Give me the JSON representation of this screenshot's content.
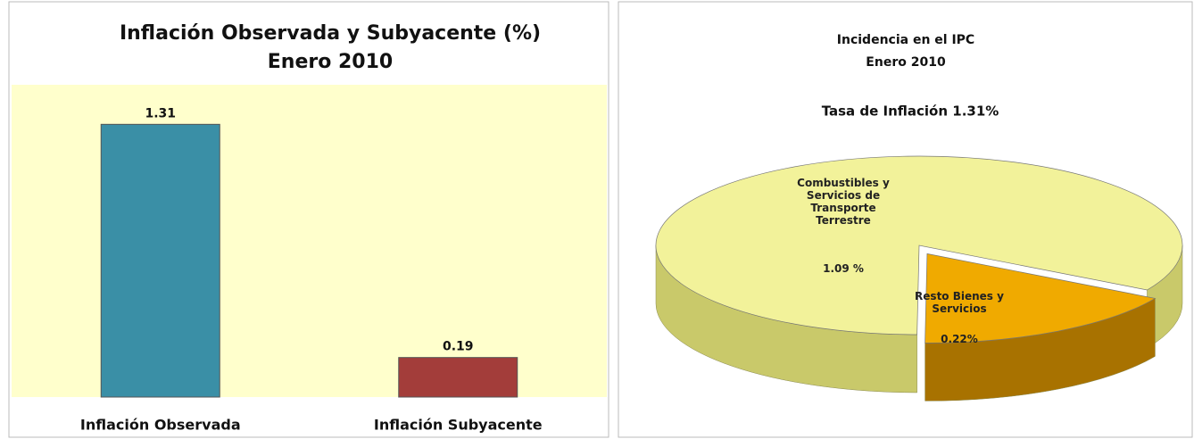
{
  "chart_data": [
    {
      "type": "bar",
      "title": "Inflación Observada y Subyacente (%)",
      "subtitle": "Enero 2010",
      "categories": [
        "Inflación Observada",
        "Inflación Subyacente"
      ],
      "values": [
        1.31,
        0.19
      ],
      "colors": [
        "#3a8fa6",
        "#a33d3a"
      ],
      "ylim": [
        0,
        1.5
      ]
    },
    {
      "type": "pie",
      "title": "Incidencia en el IPC",
      "subtitle": "Enero 2010",
      "annotation": "Tasa de Inflación 1.31%",
      "categories": [
        "Combustibles y Servicios de Transporte Terrestre",
        "Resto Bienes y Servicios"
      ],
      "values": [
        1.09,
        0.22
      ],
      "value_labels": [
        "1.09 %",
        "0.22%"
      ],
      "colors": [
        "#f2f29a",
        "#f0aa00"
      ]
    }
  ]
}
